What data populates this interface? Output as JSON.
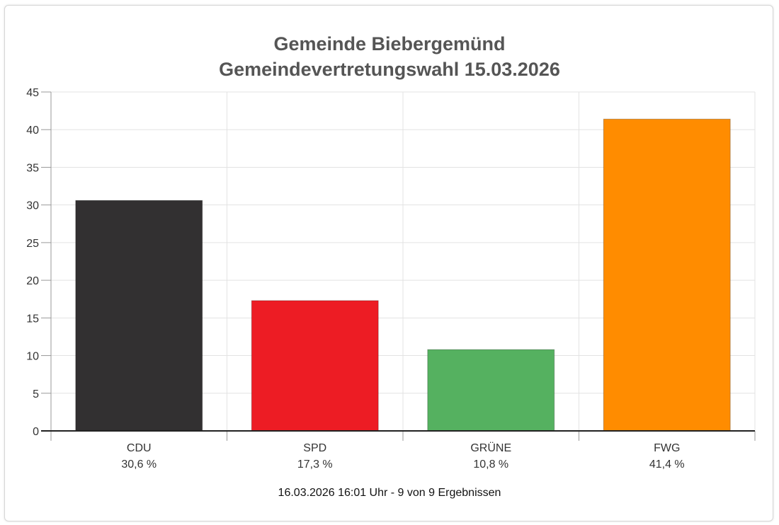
{
  "chart_data": {
    "type": "bar",
    "title_lines": [
      "Gemeinde Biebergemünd",
      "Gemeindevertretungswahl 15.03.2026"
    ],
    "categories": [
      "CDU",
      "SPD",
      "GRÜNE",
      "FWG"
    ],
    "values": [
      30.6,
      17.3,
      10.8,
      41.4
    ],
    "value_labels": [
      "30,6 %",
      "17,3 %",
      "10,8 %",
      "41,4 %"
    ],
    "colors": [
      "#323031",
      "#ed1c24",
      "#55b160",
      "#ff8c00"
    ],
    "yticks": [
      "0",
      "5",
      "10",
      "15",
      "20",
      "25",
      "30",
      "35",
      "40",
      "45"
    ],
    "ylim": [
      0,
      45
    ],
    "grid": true,
    "xlabel": "",
    "ylabel": ""
  },
  "footer": "16.03.2026 16:01 Uhr - 9 von 9 Ergebnissen"
}
